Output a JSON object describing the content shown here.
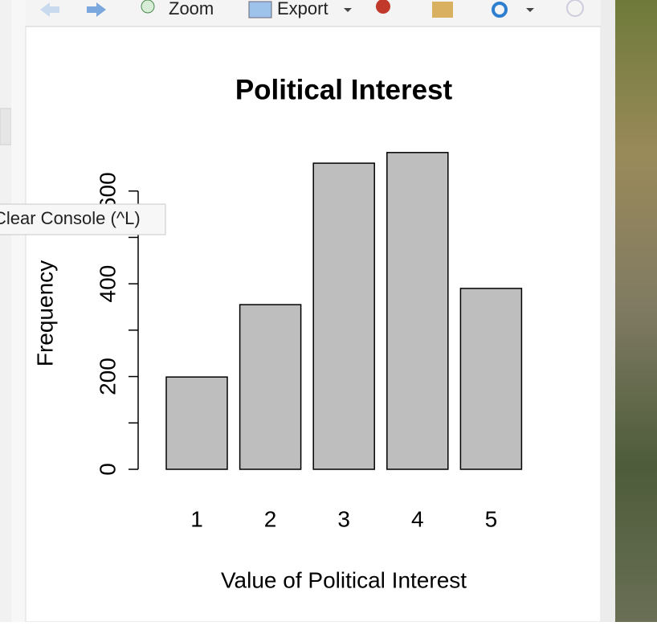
{
  "toolbar": {
    "zoom": "Zoom",
    "export": "Export"
  },
  "tooltip": "Clear Console (^L)",
  "chart_data": {
    "type": "bar",
    "title": "Political Interest",
    "x_label": "Value of Political Interest",
    "y_label": "Frequency",
    "categories": [
      "1",
      "2",
      "3",
      "4",
      "5"
    ],
    "values": [
      199,
      355,
      660,
      683,
      390
    ],
    "color": "#bebebe",
    "ylim": [
      0,
      700
    ],
    "yticks": [
      0,
      200,
      400,
      600
    ],
    "yminorticks": [
      100,
      300,
      500
    ]
  }
}
